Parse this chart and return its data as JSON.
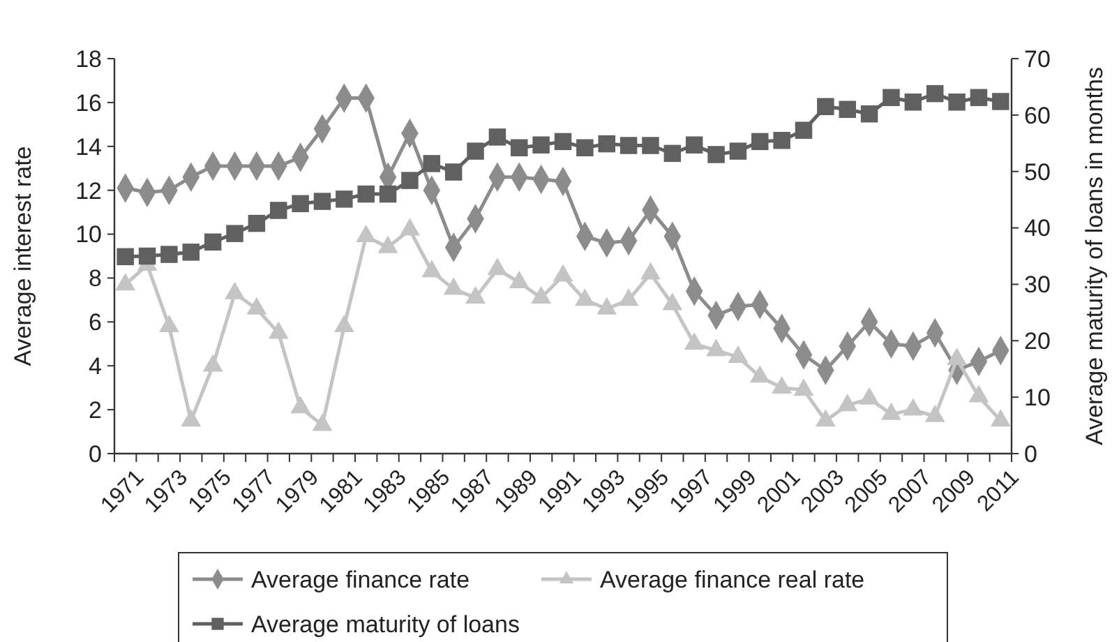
{
  "chart_data": {
    "type": "line",
    "ylabel": "Average interest rate",
    "y2label": "Average maturity of loans in months",
    "categories": [
      "1971",
      null,
      "1973",
      null,
      "1975",
      null,
      "1977",
      null,
      "1979",
      null,
      "1981",
      null,
      "1983",
      null,
      "1985",
      null,
      "1987",
      null,
      "1989",
      null,
      "1991",
      null,
      "1993",
      null,
      "1995",
      null,
      "1997",
      null,
      "1999",
      null,
      "2001",
      null,
      "2003",
      null,
      "2005",
      null,
      "2007",
      null,
      "2009",
      null,
      "2011"
    ],
    "ylim": [
      0,
      18
    ],
    "yticks": [
      0,
      2,
      4,
      6,
      8,
      10,
      12,
      14,
      16,
      18
    ],
    "y2lim": [
      0,
      70
    ],
    "y2ticks": [
      0,
      10,
      20,
      30,
      40,
      50,
      60,
      70
    ],
    "grid": false,
    "legend": "bottom",
    "series": [
      {
        "name": "Average finance rate",
        "color": "#8c8c8c",
        "marker": "diamond",
        "values": [
          12.1,
          11.9,
          12.0,
          12.6,
          13.1,
          13.1,
          13.1,
          13.1,
          13.5,
          14.8,
          16.2,
          16.2,
          12.6,
          14.6,
          12.0,
          9.4,
          10.7,
          12.6,
          12.6,
          12.5,
          12.4,
          9.9,
          9.6,
          9.7,
          11.1,
          9.9,
          7.4,
          6.3,
          6.7,
          6.8,
          5.7,
          4.5,
          3.8,
          4.9,
          6.0,
          5.0,
          4.9,
          5.5,
          3.8,
          4.2,
          4.7
        ]
      },
      {
        "name": "Average finance real rate",
        "color": "#c4c4c4",
        "marker": "triangle",
        "values": [
          7.7,
          8.6,
          5.8,
          1.5,
          4.0,
          7.3,
          6.6,
          5.5,
          2.1,
          1.3,
          5.8,
          9.9,
          9.4,
          10.2,
          8.3,
          7.5,
          7.1,
          8.4,
          7.8,
          7.1,
          8.1,
          7.0,
          6.6,
          7.0,
          8.2,
          6.8,
          5.0,
          4.7,
          4.4,
          3.5,
          3.0,
          2.9,
          1.5,
          2.2,
          2.5,
          1.8,
          2.0,
          1.7,
          4.3,
          2.6,
          1.5
        ]
      },
      {
        "name": "Average maturity of loans",
        "color": "#606060",
        "marker": "square",
        "axis": "y2",
        "values": [
          34.9,
          35.0,
          35.3,
          35.7,
          37.5,
          39.0,
          40.8,
          43.1,
          44.3,
          44.7,
          45.1,
          46.0,
          46.0,
          48.4,
          51.4,
          49.9,
          53.6,
          56.1,
          54.2,
          54.7,
          55.3,
          54.2,
          54.9,
          54.6,
          54.6,
          53.2,
          54.7,
          53.0,
          53.6,
          55.3,
          55.5,
          57.3,
          61.5,
          61.0,
          60.2,
          63.1,
          62.3,
          63.8,
          62.3,
          63.1,
          62.4
        ]
      }
    ]
  }
}
